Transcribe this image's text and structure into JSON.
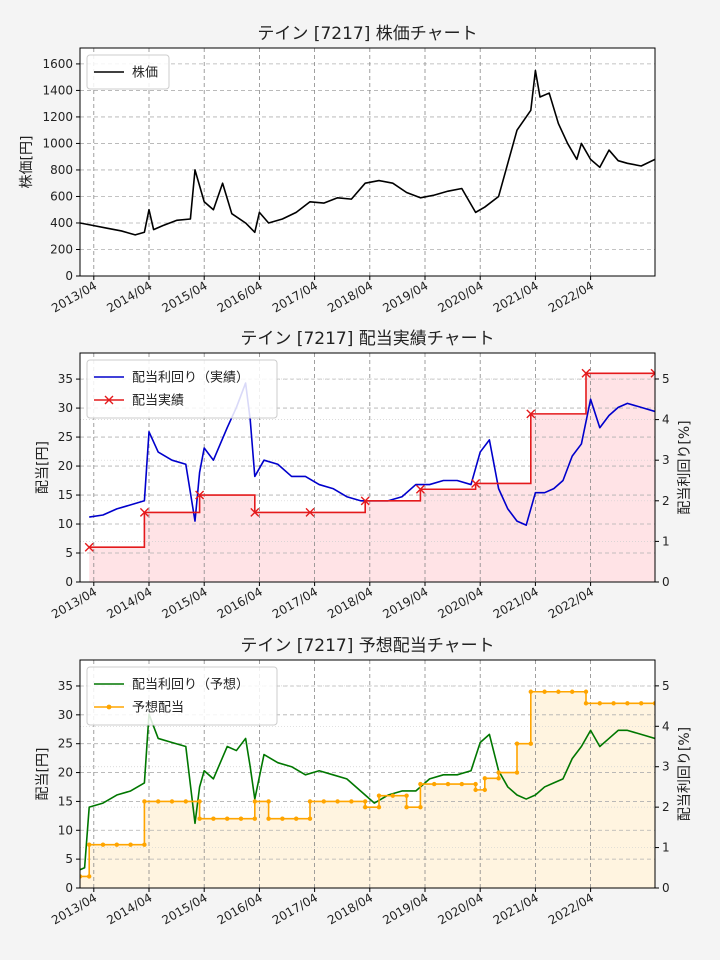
{
  "colors": {
    "background": "#f4f4f4",
    "price_line": "#000000",
    "actual_yield_line": "#0000cc",
    "actual_dividend": "#e41a1c",
    "actual_fill": "#ffe3e6",
    "forecast_yield_line": "#007700",
    "forecast_dividend": "#ffa500",
    "forecast_fill": "#fff4e0"
  },
  "chart_data": [
    {
      "type": "line",
      "title": "テイン [7217]  株価チャート",
      "ylabel": "株価[円]",
      "ylim": [
        0,
        1720
      ],
      "yticks": [
        0,
        200,
        400,
        600,
        800,
        1000,
        1200,
        1400,
        1600
      ],
      "xlim": [
        "2013-01",
        "2023-06"
      ],
      "xtick_labels": [
        "2013/04",
        "2014/04",
        "2015/04",
        "2016/04",
        "2017/04",
        "2018/04",
        "2019/04",
        "2020/04",
        "2021/04",
        "2022/04"
      ],
      "grid": true,
      "legend_position": "top-left",
      "series": [
        {
          "name": "株価",
          "x": [
            "2013-01",
            "2013-04",
            "2013-07",
            "2013-10",
            "2014-01",
            "2014-03",
            "2014-04",
            "2014-05",
            "2014-07",
            "2014-10",
            "2015-01",
            "2015-02",
            "2015-04",
            "2015-06",
            "2015-08",
            "2015-10",
            "2016-01",
            "2016-03",
            "2016-04",
            "2016-06",
            "2016-09",
            "2016-12",
            "2017-03",
            "2017-06",
            "2017-09",
            "2017-12",
            "2018-03",
            "2018-06",
            "2018-09",
            "2018-12",
            "2019-03",
            "2019-06",
            "2019-09",
            "2019-12",
            "2020-03",
            "2020-05",
            "2020-08",
            "2020-10",
            "2020-12",
            "2021-03",
            "2021-04",
            "2021-05",
            "2021-07",
            "2021-09",
            "2021-11",
            "2022-01",
            "2022-02",
            "2022-04",
            "2022-06",
            "2022-08",
            "2022-10",
            "2022-12",
            "2023-03",
            "2023-06"
          ],
          "values": [
            400,
            380,
            360,
            340,
            310,
            330,
            500,
            350,
            380,
            420,
            430,
            800,
            560,
            500,
            700,
            470,
            400,
            330,
            480,
            400,
            430,
            480,
            560,
            550,
            590,
            580,
            700,
            720,
            700,
            630,
            590,
            610,
            640,
            660,
            480,
            520,
            600,
            850,
            1100,
            1250,
            1550,
            1350,
            1380,
            1150,
            1000,
            880,
            1000,
            880,
            820,
            950,
            870,
            850,
            830,
            880
          ]
        }
      ]
    },
    {
      "type": "line",
      "title": "テイン [7217]  配当実績チャート",
      "ylabel": "配当[円]",
      "ylabel_right": "配当利回り[%]",
      "ylim": [
        0,
        39.5
      ],
      "ylim_right": [
        0,
        5.64
      ],
      "yticks": [
        0,
        5,
        10,
        15,
        20,
        25,
        30,
        35
      ],
      "yticks_right": [
        0,
        1,
        2,
        3,
        4,
        5
      ],
      "xlim": [
        "2013-01",
        "2023-06"
      ],
      "xtick_labels": [
        "2013/04",
        "2014/04",
        "2015/04",
        "2016/04",
        "2017/04",
        "2018/04",
        "2019/04",
        "2020/04",
        "2021/04",
        "2022/04"
      ],
      "grid": true,
      "legend_position": "top-left",
      "series": [
        {
          "name": "配当利回り（実績）",
          "axis": "right",
          "x": [
            "2013-03",
            "2013-06",
            "2013-09",
            "2013-12",
            "2014-03",
            "2014-04",
            "2014-06",
            "2014-09",
            "2014-12",
            "2015-02",
            "2015-03",
            "2015-04",
            "2015-06",
            "2015-09",
            "2015-11",
            "2016-01",
            "2016-02",
            "2016-03",
            "2016-05",
            "2016-08",
            "2016-11",
            "2017-02",
            "2017-05",
            "2017-08",
            "2017-11",
            "2018-02",
            "2018-05",
            "2018-08",
            "2018-11",
            "2019-02",
            "2019-05",
            "2019-08",
            "2019-11",
            "2020-02",
            "2020-04",
            "2020-06",
            "2020-08",
            "2020-10",
            "2020-12",
            "2021-02",
            "2021-04",
            "2021-06",
            "2021-08",
            "2021-10",
            "2021-12",
            "2022-02",
            "2022-04",
            "2022-06",
            "2022-08",
            "2022-10",
            "2022-12",
            "2023-03",
            "2023-06"
          ],
          "values": [
            1.6,
            1.65,
            1.8,
            1.9,
            2.0,
            3.7,
            3.2,
            3.0,
            2.9,
            1.5,
            2.7,
            3.3,
            3.0,
            3.8,
            4.3,
            4.9,
            4.0,
            2.6,
            3.0,
            2.9,
            2.6,
            2.6,
            2.4,
            2.3,
            2.1,
            2.0,
            2.0,
            2.0,
            2.1,
            2.4,
            2.4,
            2.5,
            2.5,
            2.4,
            3.2,
            3.5,
            2.3,
            1.8,
            1.5,
            1.4,
            2.2,
            2.2,
            2.3,
            2.5,
            3.1,
            3.4,
            4.5,
            3.8,
            4.1,
            4.3,
            4.4,
            4.3,
            4.2
          ]
        },
        {
          "name": "配当実績",
          "axis": "left",
          "step": true,
          "x": [
            "2013-03",
            "2014-03",
            "2015-03",
            "2016-03",
            "2017-03",
            "2018-03",
            "2019-03",
            "2020-03",
            "2021-03",
            "2022-03",
            "2023-06"
          ],
          "values": [
            6,
            12,
            15,
            12,
            12,
            14,
            16,
            17,
            29,
            36,
            36
          ]
        }
      ]
    },
    {
      "type": "line",
      "title": "テイン [7217]  予想配当チャート",
      "ylabel": "配当[円]",
      "ylabel_right": "配当利回り[%]",
      "ylim": [
        0,
        39.5
      ],
      "ylim_right": [
        0,
        5.64
      ],
      "yticks": [
        0,
        5,
        10,
        15,
        20,
        25,
        30,
        35
      ],
      "yticks_right": [
        0,
        1,
        2,
        3,
        4,
        5
      ],
      "xlim": [
        "2013-01",
        "2023-06"
      ],
      "xtick_labels": [
        "2013/04",
        "2014/04",
        "2015/04",
        "2016/04",
        "2017/04",
        "2018/04",
        "2019/04",
        "2020/04",
        "2021/04",
        "2022/04"
      ],
      "grid": true,
      "legend_position": "top-left",
      "series": [
        {
          "name": "配当利回り（予想）",
          "axis": "right",
          "x": [
            "2013-01",
            "2013-02",
            "2013-03",
            "2013-06",
            "2013-09",
            "2013-12",
            "2014-03",
            "2014-04",
            "2014-06",
            "2014-09",
            "2014-12",
            "2015-02",
            "2015-03",
            "2015-04",
            "2015-06",
            "2015-09",
            "2015-11",
            "2016-01",
            "2016-02",
            "2016-03",
            "2016-05",
            "2016-08",
            "2016-11",
            "2017-02",
            "2017-05",
            "2017-08",
            "2017-11",
            "2018-02",
            "2018-05",
            "2018-08",
            "2018-11",
            "2019-02",
            "2019-05",
            "2019-08",
            "2019-11",
            "2020-02",
            "2020-04",
            "2020-06",
            "2020-08",
            "2020-10",
            "2020-12",
            "2021-02",
            "2021-04",
            "2021-06",
            "2021-08",
            "2021-10",
            "2021-12",
            "2022-02",
            "2022-04",
            "2022-06",
            "2022-08",
            "2022-10",
            "2022-12",
            "2023-03",
            "2023-06"
          ],
          "values": [
            0.45,
            0.5,
            2.0,
            2.1,
            2.3,
            2.4,
            2.6,
            4.3,
            3.7,
            3.6,
            3.5,
            1.6,
            2.5,
            2.9,
            2.7,
            3.5,
            3.4,
            3.7,
            3.0,
            2.2,
            3.3,
            3.1,
            3.0,
            2.8,
            2.9,
            2.8,
            2.7,
            2.4,
            2.1,
            2.3,
            2.4,
            2.4,
            2.7,
            2.8,
            2.8,
            2.9,
            3.6,
            3.8,
            2.9,
            2.5,
            2.3,
            2.2,
            2.3,
            2.5,
            2.6,
            2.7,
            3.2,
            3.5,
            3.9,
            3.5,
            3.7,
            3.9,
            3.9,
            3.8,
            3.7
          ]
        },
        {
          "name": "予想配当",
          "axis": "left",
          "step": true,
          "x": [
            "2013-01",
            "2013-03",
            "2014-03",
            "2015-03",
            "2016-03",
            "2016-06",
            "2017-03",
            "2018-03",
            "2018-06",
            "2018-12",
            "2019-03",
            "2020-03",
            "2020-05",
            "2020-08",
            "2020-12",
            "2021-03",
            "2022-03",
            "2023-06"
          ],
          "values": [
            2,
            7.5,
            15,
            12,
            15,
            12,
            15,
            14,
            16,
            14,
            18,
            17,
            19,
            20,
            25,
            34,
            32,
            32
          ]
        }
      ]
    }
  ]
}
